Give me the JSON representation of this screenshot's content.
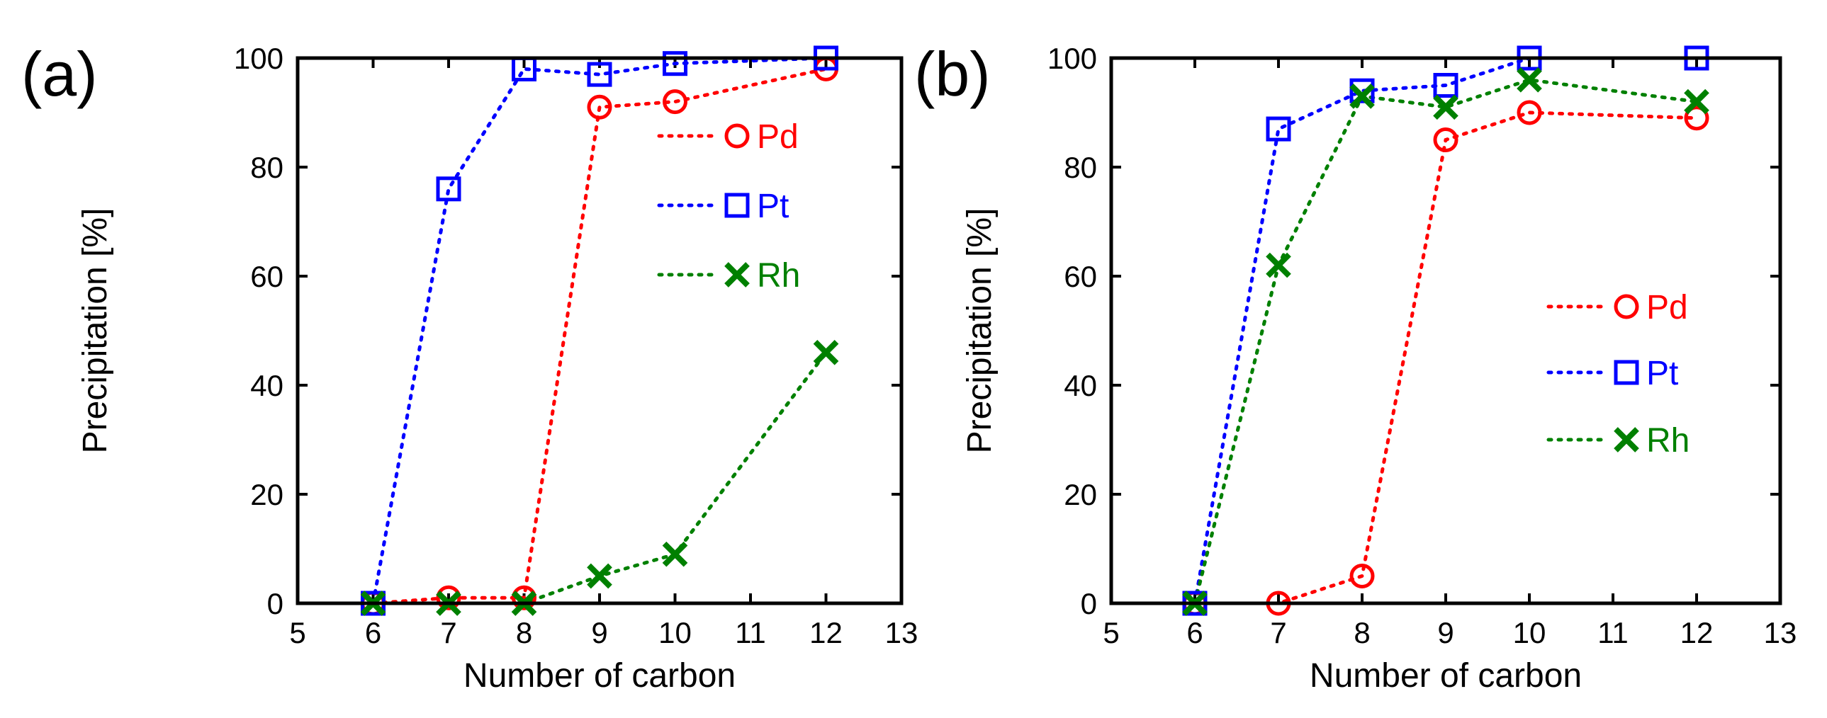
{
  "chart_data": [
    {
      "type": "line",
      "panel_label": "(a)",
      "xlabel": "Number of carbon",
      "ylabel": "Precipitation [%]",
      "xlim": [
        5,
        13
      ],
      "ylim": [
        0,
        100
      ],
      "xticks": [
        "5",
        "6",
        "7",
        "8",
        "9",
        "10",
        "11",
        "12",
        "13"
      ],
      "yticks": [
        "0",
        "20",
        "40",
        "60",
        "80",
        "100"
      ],
      "legend_position": "upper-right",
      "series": [
        {
          "name": "Pd",
          "color": "#ff0000",
          "marker": "circle",
          "x": [
            6,
            7,
            8,
            9,
            10,
            12
          ],
          "values": [
            0,
            1,
            1,
            91,
            92,
            98
          ]
        },
        {
          "name": "Pt",
          "color": "#0000ff",
          "marker": "square",
          "x": [
            6,
            7,
            8,
            9,
            10,
            12
          ],
          "values": [
            0,
            76,
            98,
            97,
            99,
            100
          ]
        },
        {
          "name": "Rh",
          "color": "#008000",
          "marker": "x",
          "x": [
            6,
            7,
            8,
            9,
            10,
            12
          ],
          "values": [
            0,
            0,
            0,
            5,
            9,
            46
          ]
        }
      ]
    },
    {
      "type": "line",
      "panel_label": "(b)",
      "xlabel": "Number of carbon",
      "ylabel": "Precipitation [%]",
      "xlim": [
        5,
        13
      ],
      "ylim": [
        0,
        100
      ],
      "xticks": [
        "5",
        "6",
        "7",
        "8",
        "9",
        "10",
        "11",
        "12",
        "13"
      ],
      "yticks": [
        "0",
        "20",
        "40",
        "60",
        "80",
        "100"
      ],
      "legend_position": "center-right",
      "series": [
        {
          "name": "Pd",
          "color": "#ff0000",
          "marker": "circle",
          "x": [
            6,
            7,
            8,
            9,
            10,
            12
          ],
          "values": [
            0,
            0,
            5,
            85,
            90,
            89
          ]
        },
        {
          "name": "Pt",
          "color": "#0000ff",
          "marker": "square",
          "x": [
            6,
            7,
            8,
            9,
            10,
            12
          ],
          "values": [
            0,
            87,
            94,
            95,
            100,
            100
          ]
        },
        {
          "name": "Rh",
          "color": "#008000",
          "marker": "x",
          "x": [
            6,
            7,
            8,
            9,
            10,
            12
          ],
          "values": [
            0,
            62,
            93,
            91,
            96,
            92
          ]
        }
      ]
    }
  ]
}
